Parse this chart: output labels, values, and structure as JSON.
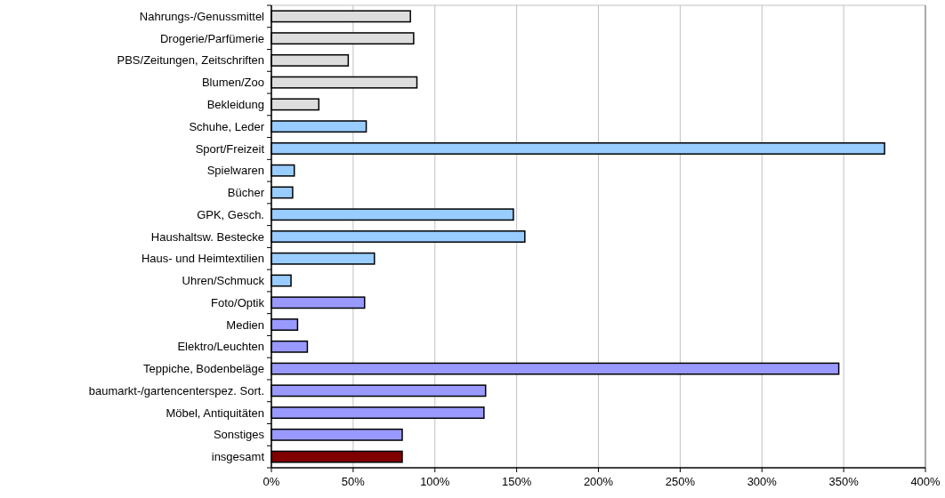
{
  "chart_data": {
    "type": "bar",
    "orientation": "horizontal",
    "categories": [
      "Nahrungs-/Genussmittel",
      "Drogerie/Parfümerie",
      "PBS/Zeitungen, Zeitschriften",
      "Blumen/Zoo",
      "Bekleidung",
      "Schuhe, Leder",
      "Sport/Freizeit",
      "Spielwaren",
      "Bücher",
      "GPK, Gesch.",
      "Haushaltsw. Bestecke",
      "Haus- und Heimtextilien",
      "Uhren/Schmuck",
      "Foto/Optik",
      "Medien",
      "Elektro/Leuchten",
      "Teppiche, Bodenbeläge",
      "baumarkt-/gartencenterspez. Sort.",
      "Möbel, Antiquitäten",
      "Sonstiges",
      "insgesamt"
    ],
    "values": [
      85,
      87,
      47,
      89,
      29,
      58,
      375,
      14,
      13,
      148,
      155,
      63,
      12,
      57,
      16,
      22,
      347,
      131,
      130,
      80,
      80
    ],
    "colors": [
      "#dddddd",
      "#dddddd",
      "#dddddd",
      "#dddddd",
      "#dddddd",
      "#99ccff",
      "#99ccff",
      "#99ccff",
      "#99ccff",
      "#99ccff",
      "#99ccff",
      "#99ccff",
      "#99ccff",
      "#9999ff",
      "#9999ff",
      "#9999ff",
      "#9999ff",
      "#9999ff",
      "#9999ff",
      "#9999ff",
      "#800000"
    ],
    "xlim": [
      0,
      400
    ],
    "xticks": [
      {
        "value": 0,
        "label": "0%"
      },
      {
        "value": 50,
        "label": "50%"
      },
      {
        "value": 100,
        "label": "100%"
      },
      {
        "value": 150,
        "label": "150%"
      },
      {
        "value": 200,
        "label": "200%"
      },
      {
        "value": 250,
        "label": "250%"
      },
      {
        "value": 300,
        "label": "300%"
      },
      {
        "value": 350,
        "label": "350%"
      },
      {
        "value": 400,
        "label": "400%"
      }
    ],
    "grid": "x"
  }
}
